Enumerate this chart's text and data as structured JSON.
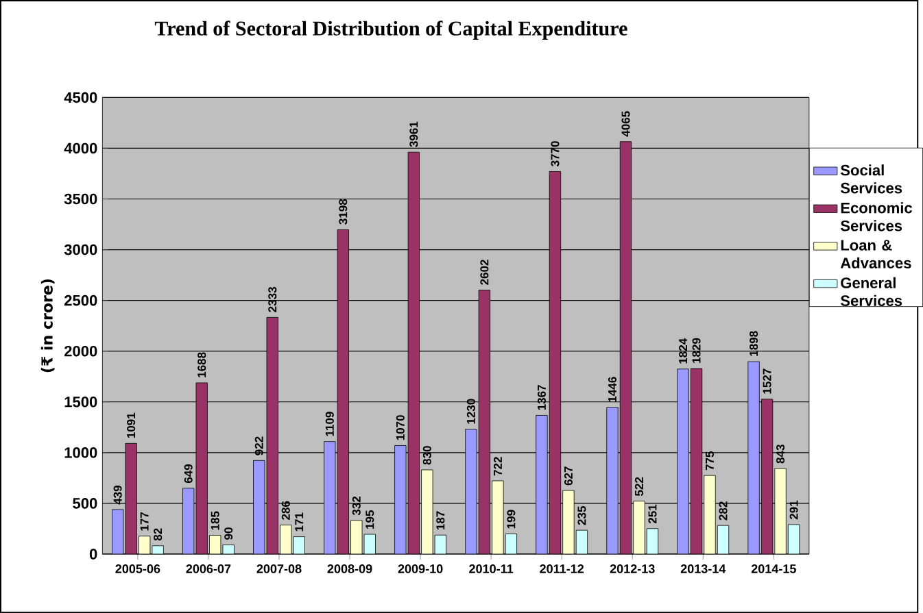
{
  "chart_data": {
    "type": "bar",
    "title": "Trend of Sectoral Distribution of Capital Expenditure",
    "ylabel": "(₹ in crore)",
    "categories": [
      "2005-06",
      "2006-07",
      "2007-08",
      "2008-09",
      "2009-10",
      "2010-11",
      "2011-12",
      "2012-13",
      "2013-14",
      "2014-15"
    ],
    "series": [
      {
        "name": "Social Services",
        "color": "#9999ff",
        "values": [
          439,
          649,
          922,
          1109,
          1070,
          1230,
          1367,
          1446,
          1824,
          1898
        ]
      },
      {
        "name": "Economic Services",
        "color": "#993366",
        "values": [
          1091,
          1688,
          2333,
          3198,
          3961,
          2602,
          3770,
          4065,
          1829,
          1527
        ]
      },
      {
        "name": "Loan & Advances",
        "color": "#ffffcc",
        "values": [
          177,
          185,
          286,
          332,
          830,
          722,
          627,
          522,
          775,
          843
        ]
      },
      {
        "name": "General Services",
        "color": "#ccffff",
        "values": [
          82,
          90,
          171,
          195,
          187,
          199,
          235,
          251,
          282,
          291
        ]
      }
    ],
    "ylim": [
      0,
      4500
    ],
    "yticks": [
      0,
      500,
      1000,
      1500,
      2000,
      2500,
      3000,
      3500,
      4000,
      4500
    ],
    "grid": "y",
    "legend": "right",
    "data_labels": true
  }
}
